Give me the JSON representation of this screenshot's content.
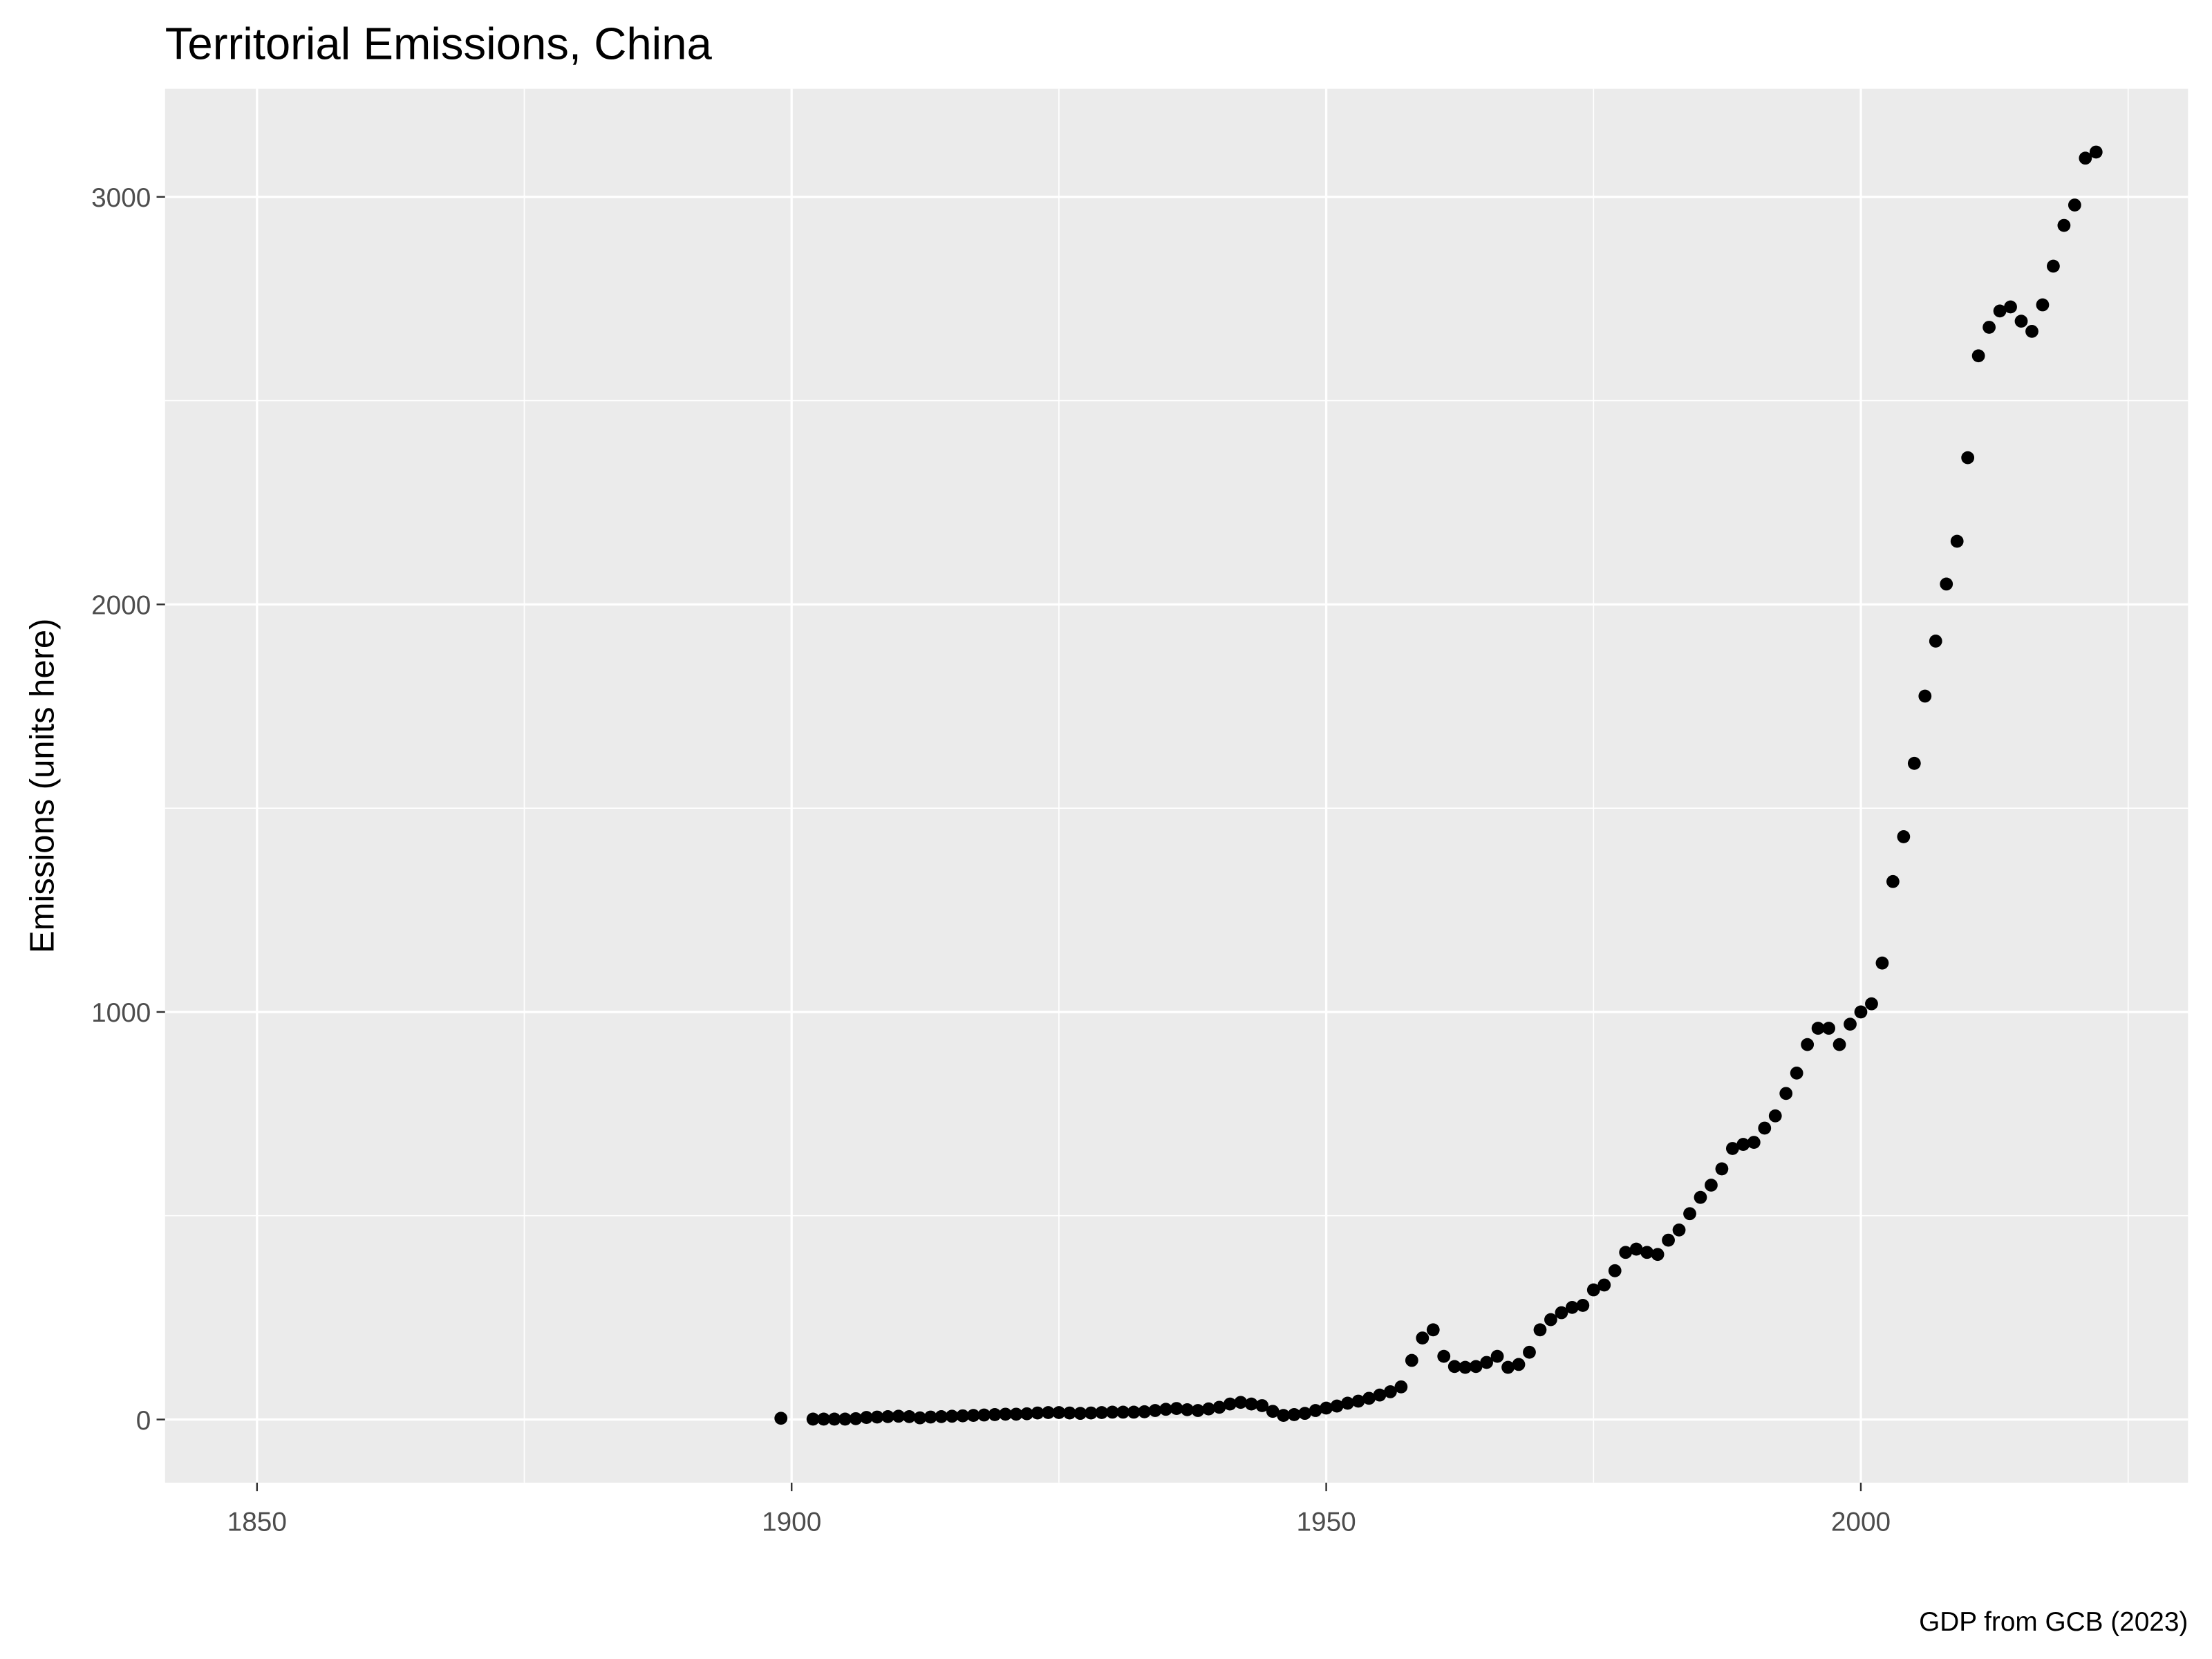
{
  "chart_data": {
    "type": "scatter",
    "title": "Territorial Emissions, China",
    "y_label": "Emissions (units here)",
    "caption": "GDP from GCB (2023)",
    "color": "#000000",
    "x": [
      1899,
      1902,
      1903,
      1904,
      1905,
      1906,
      1907,
      1908,
      1909,
      1910,
      1911,
      1912,
      1913,
      1914,
      1915,
      1916,
      1917,
      1918,
      1919,
      1920,
      1921,
      1922,
      1923,
      1924,
      1925,
      1926,
      1927,
      1928,
      1929,
      1930,
      1931,
      1932,
      1933,
      1934,
      1935,
      1936,
      1937,
      1938,
      1939,
      1940,
      1941,
      1942,
      1943,
      1944,
      1945,
      1946,
      1947,
      1948,
      1949,
      1950,
      1951,
      1952,
      1953,
      1954,
      1955,
      1956,
      1957,
      1958,
      1959,
      1960,
      1961,
      1962,
      1963,
      1964,
      1965,
      1966,
      1967,
      1968,
      1969,
      1970,
      1971,
      1972,
      1973,
      1974,
      1975,
      1976,
      1977,
      1978,
      1979,
      1980,
      1981,
      1982,
      1983,
      1984,
      1985,
      1986,
      1987,
      1988,
      1989,
      1990,
      1991,
      1992,
      1993,
      1994,
      1995,
      1996,
      1997,
      1998,
      1999,
      2000,
      2001,
      2002,
      2003,
      2004,
      2005,
      2006,
      2007,
      2008,
      2009,
      2010,
      2011,
      2012,
      2013,
      2014,
      2015,
      2016,
      2017,
      2018,
      2019,
      2020,
      2021,
      2022
    ],
    "values": [
      3,
      1,
      1,
      1,
      1,
      2,
      5,
      6,
      7,
      8,
      7,
      4,
      6,
      7,
      8,
      9,
      10,
      11,
      12,
      13,
      13,
      14,
      16,
      17,
      17,
      16,
      15,
      16,
      17,
      18,
      18,
      18,
      19,
      22,
      25,
      27,
      24,
      22,
      26,
      30,
      38,
      42,
      38,
      34,
      20,
      10,
      12,
      15,
      22,
      28,
      33,
      40,
      45,
      52,
      60,
      68,
      80,
      145,
      200,
      220,
      155,
      130,
      128,
      130,
      140,
      155,
      128,
      135,
      165,
      220,
      245,
      262,
      275,
      280,
      318,
      330,
      365,
      410,
      418,
      410,
      405,
      440,
      465,
      505,
      545,
      575,
      615,
      665,
      675,
      680,
      715,
      745,
      800,
      850,
      920,
      960,
      960,
      920,
      970,
      1000,
      1020,
      1120,
      1320,
      1430,
      1610,
      1775,
      1910,
      2050,
      2155,
      2360,
      2610,
      2680,
      2720,
      2730,
      2695,
      2670,
      2735,
      2830,
      2930,
      2980,
      3095,
      3110
    ],
    "xlim": [
      1841.4,
      2030.6
    ],
    "ylim": [
      -155,
      3265
    ],
    "xticks": [
      1850,
      1900,
      1950,
      2000
    ],
    "yticks": [
      0,
      1000,
      2000,
      3000
    ],
    "x_minor_grid": [
      1875,
      1925,
      1975,
      2025
    ],
    "y_minor_grid": [
      500,
      1500,
      2500
    ],
    "grid": true
  }
}
